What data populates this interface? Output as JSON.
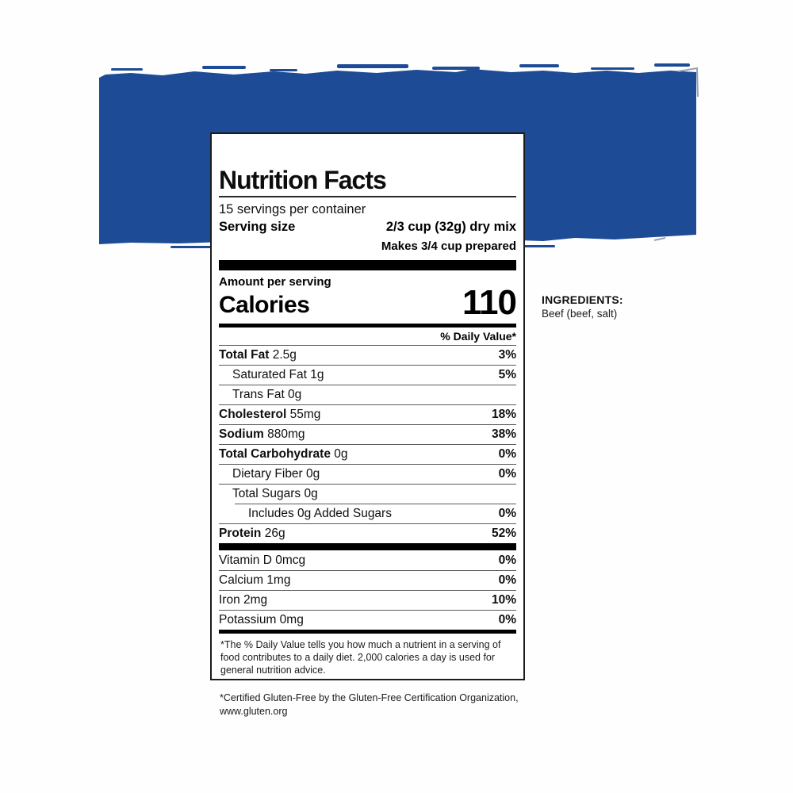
{
  "banner": {
    "color": "#1d4b96",
    "edge_color": "#97a0b4"
  },
  "label": {
    "title": "Nutrition Facts",
    "servings_per_container": "15 servings per container",
    "serving_size_label": "Serving size",
    "serving_size_value": "2/3 cup (32g) dry mix",
    "serving_size_note": "Makes 3/4 cup prepared",
    "amount_per_serving": "Amount per serving",
    "calories_label": "Calories",
    "calories_value": "110",
    "daily_value_header": "% Daily Value*",
    "rows": [
      {
        "name": "Total Fat",
        "amount": "2.5g",
        "dv": "3%",
        "bold": true,
        "indent": 0,
        "partial_rule": false
      },
      {
        "name": "Saturated Fat",
        "amount": "1g",
        "dv": "5%",
        "bold": false,
        "indent": 1,
        "partial_rule": false
      },
      {
        "name": "Trans Fat",
        "amount": "0g",
        "dv": "",
        "bold": false,
        "indent": 1,
        "partial_rule": false
      },
      {
        "name": "Cholesterol",
        "amount": "55mg",
        "dv": "18%",
        "bold": true,
        "indent": 0,
        "partial_rule": false
      },
      {
        "name": "Sodium",
        "amount": "880mg",
        "dv": "38%",
        "bold": true,
        "indent": 0,
        "partial_rule": false
      },
      {
        "name": "Total Carbohydrate",
        "amount": "0g",
        "dv": "0%",
        "bold": true,
        "indent": 0,
        "partial_rule": false
      },
      {
        "name": "Dietary Fiber",
        "amount": "0g",
        "dv": "0%",
        "bold": false,
        "indent": 1,
        "partial_rule": false
      },
      {
        "name": "Total Sugars",
        "amount": "0g",
        "dv": "",
        "bold": false,
        "indent": 1,
        "partial_rule": false
      },
      {
        "name": "Includes 0g Added Sugars",
        "amount": "",
        "dv": "0%",
        "bold": false,
        "indent": 2,
        "partial_rule": true
      },
      {
        "name": "Protein",
        "amount": "26g",
        "dv": "52%",
        "bold": true,
        "indent": 0,
        "partial_rule": false
      }
    ],
    "vitamins": [
      {
        "name": "Vitamin D",
        "amount": "0mcg",
        "dv": "0%"
      },
      {
        "name": "Calcium",
        "amount": "1mg",
        "dv": "0%"
      },
      {
        "name": "Iron",
        "amount": "2mg",
        "dv": "10%"
      },
      {
        "name": "Potassium",
        "amount": "0mg",
        "dv": "0%"
      }
    ],
    "footnote": "*The % Daily Value tells you how much a nutrient in a serving of food contributes to a daily diet. 2,000 calories a day is used for general nutrition advice."
  },
  "ingredients": {
    "heading": "INGREDIENTS:",
    "text": "Beef (beef, salt)"
  },
  "certification": {
    "text": "*Certified Gluten-Free by the Gluten-Free Certification Organization, www.gluten.org"
  }
}
